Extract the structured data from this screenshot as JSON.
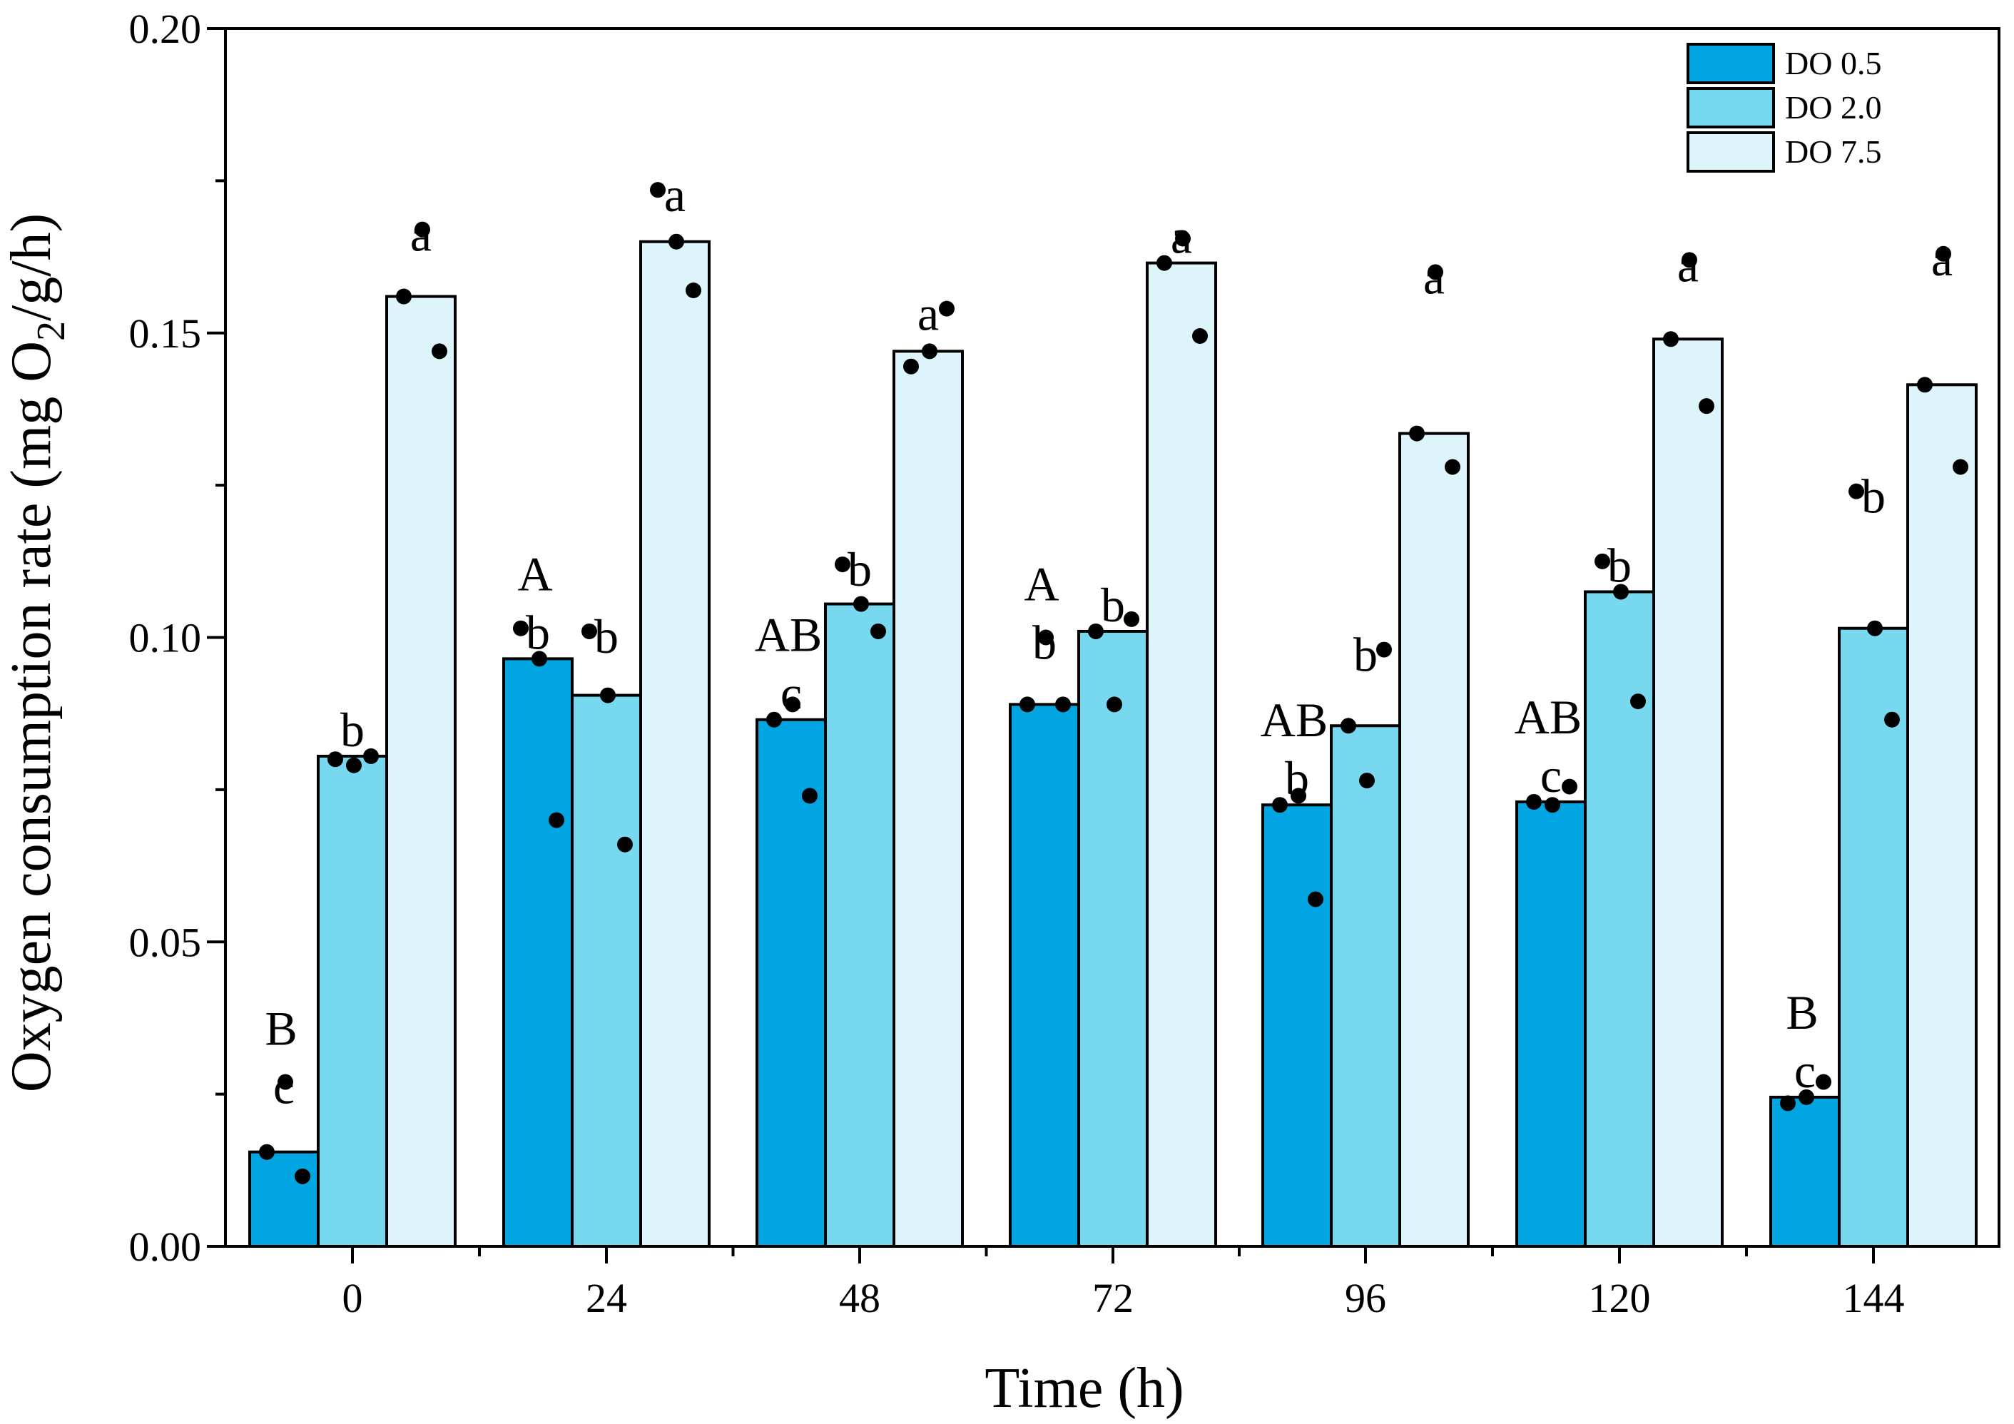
{
  "chart_data": {
    "type": "bar",
    "title": "",
    "xlabel": "Time (h)",
    "ylabel_parts": [
      "Oxygen consumption rate (mg O",
      "2",
      "/g/h)"
    ],
    "ylim": [
      0,
      0.2
    ],
    "yticks": [
      0,
      0.05,
      0.1,
      0.15,
      0.2
    ],
    "ytick_labels": [
      "0.00",
      "0.05",
      "0.10",
      "0.15",
      "0.20"
    ],
    "categories": [
      "0",
      "24",
      "48",
      "72",
      "96",
      "120",
      "144"
    ],
    "legend_position": "top-right",
    "series": [
      {
        "name": "DO 0.5",
        "color": "#00a5e1",
        "values": [
          0.0155,
          0.0965,
          0.0865,
          0.089,
          0.0725,
          0.073,
          0.0245
        ],
        "points": [
          [
            0.0155,
            0.027,
            0.0115
          ],
          [
            0.1015,
            0.0965,
            0.07
          ],
          [
            0.0865,
            0.089,
            0.074
          ],
          [
            0.089,
            0.1,
            0.089
          ],
          [
            0.0725,
            0.074,
            0.057
          ],
          [
            0.073,
            0.0725,
            0.0755
          ],
          [
            0.0235,
            0.0245,
            0.027
          ]
        ],
        "letters": [
          "c",
          "b",
          "c",
          "b",
          "b",
          "c",
          "c"
        ],
        "upper_letters": [
          "B",
          "A",
          "AB",
          "A",
          "AB",
          "AB",
          "B"
        ]
      },
      {
        "name": "DO 2.0",
        "color": "#78d8f0",
        "values": [
          0.0805,
          0.0905,
          0.1055,
          0.101,
          0.0855,
          0.1075,
          0.1015
        ],
        "points": [
          [
            0.08,
            0.079,
            0.0805
          ],
          [
            0.101,
            0.0905,
            0.066
          ],
          [
            0.112,
            0.1055,
            0.101
          ],
          [
            0.101,
            0.089,
            0.103
          ],
          [
            0.0855,
            0.0765,
            0.098
          ],
          [
            0.1125,
            0.1075,
            0.0895
          ],
          [
            0.124,
            0.1015,
            0.0865
          ]
        ],
        "letters": [
          "b",
          "b",
          "b",
          "b",
          "b",
          "b",
          "b"
        ]
      },
      {
        "name": "DO 7.5",
        "color": "#ddf4fa",
        "values": [
          0.156,
          0.165,
          0.147,
          0.1615,
          0.1335,
          0.149,
          0.1415
        ],
        "points": [
          [
            0.156,
            0.167,
            0.147
          ],
          [
            0.1735,
            0.165,
            0.157
          ],
          [
            0.1445,
            0.147,
            0.154
          ],
          [
            0.1615,
            0.1655,
            0.1495
          ],
          [
            0.1335,
            0.16,
            0.128
          ],
          [
            0.149,
            0.162,
            0.138
          ],
          [
            0.1415,
            0.163,
            0.128
          ]
        ],
        "letters": [
          "a",
          "a",
          "a",
          "a",
          "a",
          "a",
          "a"
        ]
      }
    ]
  }
}
